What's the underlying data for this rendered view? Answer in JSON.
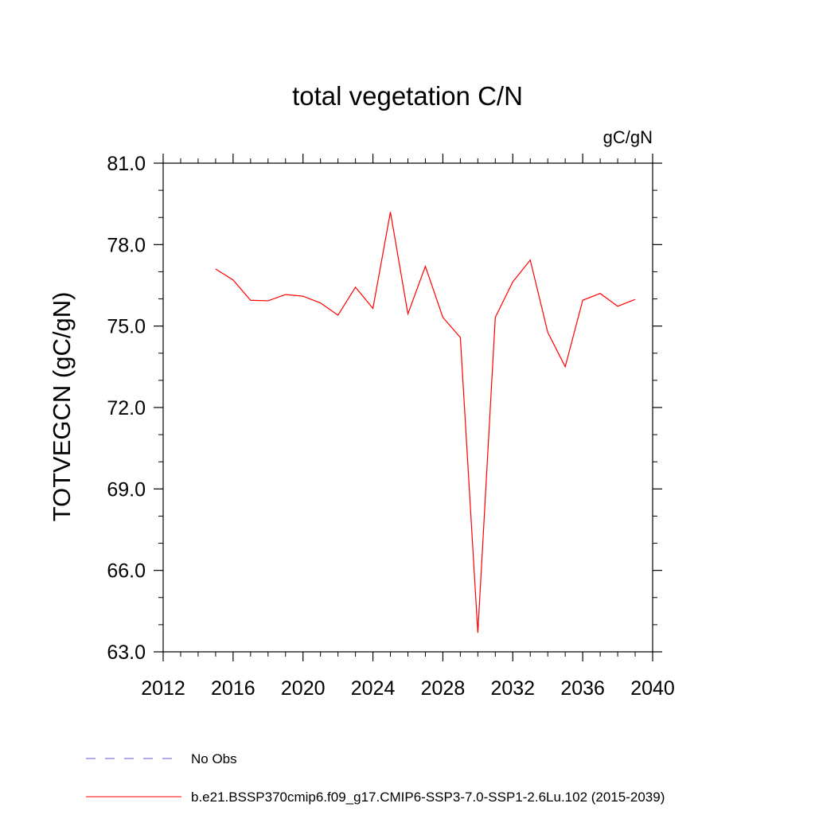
{
  "chart_data": {
    "type": "line",
    "title": "total vegetation C/N",
    "units": "gC/gN",
    "xlabel": "",
    "ylabel": "TOTVEGCN  (gC/gN)",
    "xlim": [
      2012,
      2040
    ],
    "ylim": [
      63.0,
      81.0
    ],
    "x_ticks": [
      2012,
      2016,
      2020,
      2024,
      2028,
      2032,
      2036,
      2040
    ],
    "x_tick_labels": [
      "2012",
      "2016",
      "2020",
      "2024",
      "2028",
      "2032",
      "2036",
      "2040"
    ],
    "y_ticks": [
      63.0,
      66.0,
      69.0,
      72.0,
      75.0,
      78.0,
      81.0
    ],
    "y_tick_labels": [
      "63.0",
      "66.0",
      "69.0",
      "72.0",
      "75.0",
      "78.0",
      "81.0"
    ],
    "grid": false,
    "legend_position": "bottom",
    "series": [
      {
        "name": "No Obs",
        "color": "#6a5acd",
        "style": "dashed",
        "x": [],
        "values": []
      },
      {
        "name": "b.e21.BSSP370cmip6.f09_g17.CMIP6-SSP3-7.0-SSP1-2.6Lu.102 (2015-2039)",
        "color": "#ff0000",
        "style": "solid",
        "x": [
          2015,
          2016,
          2017,
          2018,
          2019,
          2020,
          2021,
          2022,
          2023,
          2024,
          2025,
          2026,
          2027,
          2028,
          2029,
          2030,
          2031,
          2032,
          2033,
          2034,
          2035,
          2036,
          2037,
          2038,
          2039
        ],
        "values": [
          77.1,
          76.7,
          75.95,
          75.93,
          76.16,
          76.1,
          75.85,
          75.4,
          76.43,
          75.65,
          79.2,
          75.45,
          77.2,
          75.32,
          74.58,
          63.7,
          75.32,
          76.63,
          77.43,
          74.77,
          73.5,
          75.95,
          76.2,
          75.73,
          75.98
        ]
      }
    ]
  }
}
